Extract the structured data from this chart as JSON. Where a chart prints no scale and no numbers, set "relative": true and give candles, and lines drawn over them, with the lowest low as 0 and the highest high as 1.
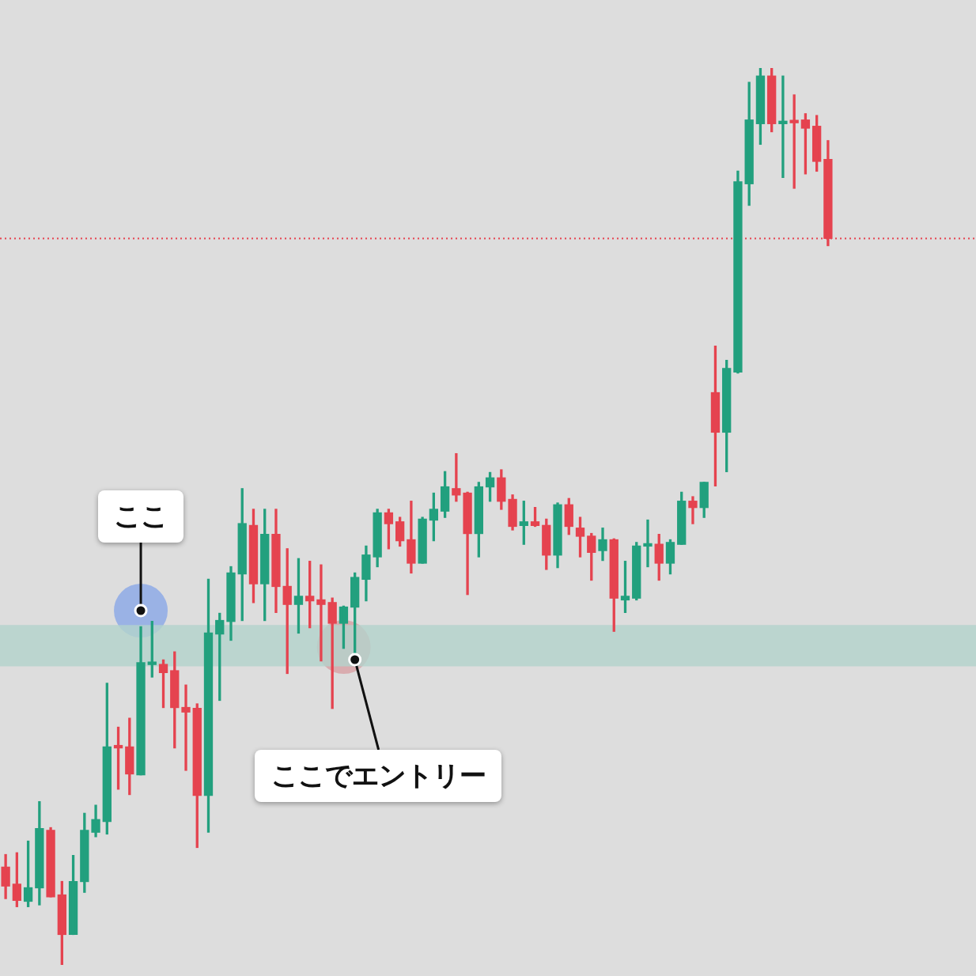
{
  "chart_data": {
    "type": "candlestick",
    "relative": true,
    "categories": [
      null,
      null,
      null,
      null,
      null,
      null,
      null,
      null,
      null,
      null,
      null,
      null,
      null,
      null,
      null,
      null,
      null,
      null,
      null,
      null,
      null,
      null,
      null,
      null,
      null,
      null,
      null,
      null,
      null,
      null,
      null,
      null,
      null,
      null,
      null,
      null,
      null,
      null,
      null,
      null,
      null,
      null,
      null,
      null,
      null,
      null,
      null,
      null,
      null,
      null,
      null,
      null,
      null,
      null,
      null,
      null,
      null,
      null,
      null,
      null,
      null,
      null,
      null,
      null,
      null,
      null,
      null,
      null,
      null,
      null,
      null,
      null,
      null,
      null
    ],
    "ohlc": [
      [
        0.109,
        0.123,
        0.074,
        0.088
      ],
      [
        0.09,
        0.125,
        0.065,
        0.072
      ],
      [
        0.071,
        0.138,
        0.065,
        0.086
      ],
      [
        0.086,
        0.182,
        0.067,
        0.152
      ],
      [
        0.15,
        0.153,
        0.076,
        0.076
      ],
      [
        0.078,
        0.093,
        0,
        0.034
      ],
      [
        0.034,
        0.122,
        0.034,
        0.093
      ],
      [
        0.093,
        0.169,
        0.081,
        0.15
      ],
      [
        0.148,
        0.178,
        0.143,
        0.162
      ],
      [
        0.16,
        0.314,
        0.146,
        0.243
      ],
      [
        0.243,
        0.265,
        0.196,
        0.242
      ],
      [
        0.243,
        0.275,
        0.19,
        0.213
      ],
      [
        0.212,
        0.377,
        0.212,
        0.337
      ],
      [
        0.335,
        0.383,
        0.321,
        0.337
      ],
      [
        0.335,
        0.34,
        0.287,
        0.326
      ],
      [
        0.328,
        0.349,
        0.242,
        0.287
      ],
      [
        0.287,
        0.312,
        0.217,
        0.282
      ],
      [
        0.286,
        0.291,
        0.131,
        0.189
      ],
      [
        0.189,
        0.43,
        0.148,
        0.37
      ],
      [
        0.369,
        0.392,
        0.295,
        0.384
      ],
      [
        0.383,
        0.444,
        0.362,
        0.437
      ],
      [
        0.436,
        0.531,
        0.384,
        0.492
      ],
      [
        0.49,
        0.508,
        0.404,
        0.425
      ],
      [
        0.425,
        0.508,
        0.384,
        0.48
      ],
      [
        0.48,
        0.508,
        0.393,
        0.422
      ],
      [
        0.422,
        0.464,
        0.325,
        0.402
      ],
      [
        0.402,
        0.453,
        0.37,
        0.411
      ],
      [
        0.411,
        0.45,
        0.376,
        0.406
      ],
      [
        0.407,
        0.446,
        0.339,
        0.402
      ],
      [
        0.404,
        0.409,
        0.286,
        0.381
      ],
      [
        0.381,
        0.4,
        0.353,
        0.399
      ],
      [
        0.399,
        0.437,
        0.344,
        0.432
      ],
      [
        0.43,
        0.467,
        0.406,
        0.457
      ],
      [
        0.455,
        0.508,
        0.444,
        0.504
      ],
      [
        0.504,
        0.508,
        0.464,
        0.492
      ],
      [
        0.494,
        0.499,
        0.467,
        0.473
      ],
      [
        0.474,
        0.517,
        0.437,
        0.448
      ],
      [
        0.448,
        0.499,
        0.448,
        0.497
      ],
      [
        0.496,
        0.526,
        0.473,
        0.508
      ],
      [
        0.506,
        0.55,
        0.499,
        0.533
      ],
      [
        0.531,
        0.57,
        0.517,
        0.524
      ],
      [
        0.526,
        0.527,
        0.413,
        0.481
      ],
      [
        0.481,
        0.538,
        0.455,
        0.533
      ],
      [
        0.533,
        0.549,
        0.517,
        0.543
      ],
      [
        0.543,
        0.552,
        0.508,
        0.517
      ],
      [
        0.519,
        0.524,
        0.485,
        0.489
      ],
      [
        0.49,
        0.517,
        0.469,
        0.494
      ],
      [
        0.494,
        0.51,
        0.489,
        0.49
      ],
      [
        0.49,
        0.497,
        0.441,
        0.457
      ],
      [
        0.457,
        0.515,
        0.443,
        0.513
      ],
      [
        0.513,
        0.52,
        0.48,
        0.489
      ],
      [
        0.487,
        0.499,
        0.455,
        0.478
      ],
      [
        0.478,
        0.481,
        0.429,
        0.46
      ],
      [
        0.462,
        0.487,
        0.451,
        0.474
      ],
      [
        0.474,
        0.475,
        0.372,
        0.409
      ],
      [
        0.407,
        0.45,
        0.393,
        0.411
      ],
      [
        0.409,
        0.471,
        0.407,
        0.467
      ],
      [
        0.467,
        0.496,
        0.444,
        0.469
      ],
      [
        0.469,
        0.48,
        0.429,
        0.448
      ],
      [
        0.448,
        0.474,
        0.436,
        0.471
      ],
      [
        0.469,
        0.527,
        0.469,
        0.517
      ],
      [
        0.517,
        0.522,
        0.492,
        0.51
      ],
      [
        0.51,
        0.538,
        0.499,
        0.538
      ],
      [
        0.638,
        0.69,
        0.534,
        0.594
      ],
      [
        0.594,
        0.674,
        0.55,
        0.665
      ],
      [
        0.661,
        0.885,
        0.66,
        0.873
      ],
      [
        0.871,
        0.984,
        0.847,
        0.942
      ],
      [
        0.938,
        1,
        0.915,
        0.991
      ],
      [
        0.991,
        1,
        0.929,
        0.938
      ],
      [
        0.938,
        0.991,
        0.878,
        0.94
      ],
      [
        0.94,
        0.97,
        0.866,
        0.939
      ],
      [
        0.942,
        0.949,
        0.882,
        0.933
      ],
      [
        0.935,
        0.947,
        0.885,
        0.896
      ],
      [
        0.898,
        0.919,
        0.802,
        0.81
      ]
    ],
    "colors": [
      "#e5434f",
      "#e5434f",
      "#22a07e",
      "#22a07e",
      "#e5434f",
      "#e5434f",
      "#22a07e",
      "#22a07e",
      "#22a07e",
      "#22a07e",
      "#e5434f",
      "#e5434f",
      "#22a07e",
      "#22a07e",
      "#e5434f",
      "#e5434f",
      "#e5434f",
      "#e5434f",
      "#22a07e",
      "#22a07e",
      "#22a07e",
      "#22a07e",
      "#e5434f",
      "#22a07e",
      "#e5434f",
      "#e5434f",
      "#22a07e",
      "#e5434f",
      "#e5434f",
      "#e5434f",
      "#22a07e",
      "#22a07e",
      "#22a07e",
      "#22a07e",
      "#e5434f",
      "#e5434f",
      "#e5434f",
      "#22a07e",
      "#22a07e",
      "#22a07e",
      "#e5434f",
      "#e5434f",
      "#22a07e",
      "#22a07e",
      "#e5434f",
      "#e5434f",
      "#22a07e",
      "#e5434f",
      "#e5434f",
      "#22a07e",
      "#e5434f",
      "#e5434f",
      "#e5434f",
      "#22a07e",
      "#e5434f",
      "#22a07e",
      "#22a07e",
      "#22a07e",
      "#e5434f",
      "#22a07e",
      "#22a07e",
      "#e5434f",
      "#22a07e",
      "#e5434f",
      "#22a07e",
      "#22a07e",
      "#22a07e",
      "#22a07e",
      "#e5434f",
      "#22a07e",
      "#e5434f",
      "#e5434f",
      "#e5434f",
      "#e5434f"
    ],
    "bands": [
      {
        "axis": "y",
        "from": 0.333,
        "to": 0.379,
        "color": "#b3d3cc"
      }
    ],
    "ref_lines": [
      {
        "axis": "y",
        "value": 0.81,
        "color": "#e5434f",
        "line_style": "dotted"
      }
    ],
    "annotations": [
      "ここ",
      "ここでエントリー"
    ]
  }
}
